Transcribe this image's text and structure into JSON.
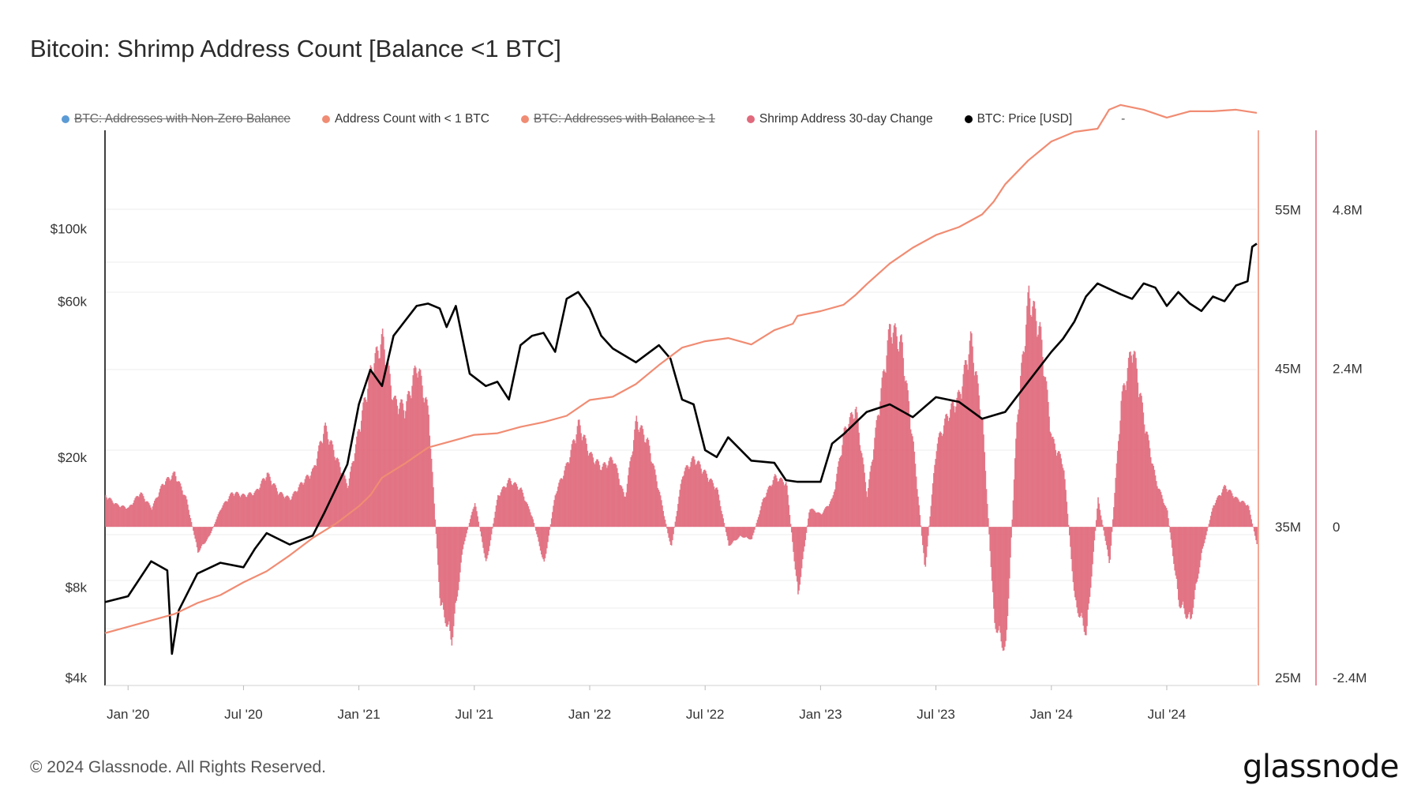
{
  "title": "Bitcoin: Shrimp Address Count [Balance <1 BTC]",
  "legend": [
    {
      "label": "BTC: Addresses with Non-Zero Balance",
      "color": "#5b9bd5",
      "hidden": true
    },
    {
      "label": "Address Count with < 1 BTC",
      "color": "#f08c73",
      "hidden": false
    },
    {
      "label": "BTC: Addresses with Balance ≥ 1",
      "color": "#f08c73",
      "hidden": true
    },
    {
      "label": "Shrimp Address 30-day Change",
      "color": "#e06a7c",
      "hidden": false
    },
    {
      "label": "BTC: Price [USD]",
      "color": "#000000",
      "hidden": false
    }
  ],
  "legend_extra": "-",
  "footer": "© 2024 Glassnode. All Rights Reserved.",
  "logo": "glassnode",
  "chart_data": {
    "type": "line",
    "x_ticks": [
      "Jan '20",
      "Jul '20",
      "Jan '21",
      "Jul '21",
      "Jan '22",
      "Jul '22",
      "Jan '23",
      "Jul '23",
      "Jan '24",
      "Jul '24"
    ],
    "y_left_ticks": [
      "$100k",
      "$60k",
      "$20k",
      "$8k",
      "$4k"
    ],
    "y_right1_ticks": [
      "55M",
      "45M",
      "35M",
      "25M"
    ],
    "y_right2_ticks": [
      "4.8M",
      "2.4M",
      "0",
      "-2.4M"
    ],
    "y_left_scale": "log",
    "y_left_range": [
      4000,
      200000
    ],
    "y_right1_range": [
      25000000,
      60000000
    ],
    "y_right2_range": [
      -2400000,
      6000000
    ],
    "x_range": [
      2019.9,
      2024.89
    ],
    "series": [
      {
        "name": "BTC: Price [USD]",
        "axis": "left",
        "color": "#000000",
        "x": [
          2019.9,
          2020.0,
          2020.1,
          2020.17,
          2020.19,
          2020.22,
          2020.3,
          2020.4,
          2020.5,
          2020.55,
          2020.6,
          2020.7,
          2020.8,
          2020.85,
          2020.9,
          2020.95,
          2021.0,
          2021.05,
          2021.1,
          2021.15,
          2021.25,
          2021.3,
          2021.35,
          2021.38,
          2021.42,
          2021.48,
          2021.55,
          2021.6,
          2021.65,
          2021.7,
          2021.75,
          2021.8,
          2021.85,
          2021.9,
          2021.95,
          2022.0,
          2022.05,
          2022.1,
          2022.2,
          2022.3,
          2022.35,
          2022.4,
          2022.45,
          2022.5,
          2022.55,
          2022.6,
          2022.7,
          2022.8,
          2022.85,
          2022.9,
          2023.0,
          2023.05,
          2023.1,
          2023.2,
          2023.3,
          2023.4,
          2023.5,
          2023.6,
          2023.7,
          2023.8,
          2023.9,
          2024.0,
          2024.05,
          2024.1,
          2024.15,
          2024.2,
          2024.3,
          2024.35,
          2024.4,
          2024.45,
          2024.5,
          2024.55,
          2024.6,
          2024.65,
          2024.7,
          2024.75,
          2024.8,
          2024.85,
          2024.87,
          2024.89
        ],
        "y": [
          7200,
          7500,
          9600,
          9000,
          5000,
          6800,
          8800,
          9500,
          9200,
          10500,
          11700,
          10800,
          11500,
          13500,
          16000,
          19000,
          29000,
          37000,
          33000,
          47000,
          58000,
          59000,
          57000,
          50000,
          58000,
          36000,
          33000,
          34000,
          30000,
          44000,
          47000,
          48000,
          42000,
          61000,
          64000,
          57000,
          47000,
          43000,
          39000,
          44000,
          40000,
          30000,
          29000,
          21000,
          20000,
          23000,
          19500,
          19200,
          17000,
          16800,
          16800,
          22000,
          23500,
          27500,
          29000,
          26500,
          30500,
          29500,
          26200,
          27500,
          34000,
          42000,
          46000,
          52000,
          62000,
          68000,
          63000,
          61000,
          68000,
          66000,
          58000,
          64000,
          59000,
          56000,
          62000,
          60000,
          67000,
          69000,
          88000,
          90000
        ]
      },
      {
        "name": "Address Count with < 1 BTC",
        "axis": "right1",
        "color": "#f08c73",
        "x": [
          2019.9,
          2020.0,
          2020.2,
          2020.3,
          2020.4,
          2020.5,
          2020.6,
          2020.7,
          2020.8,
          2020.9,
          2021.0,
          2021.05,
          2021.1,
          2021.2,
          2021.3,
          2021.4,
          2021.5,
          2021.6,
          2021.7,
          2021.8,
          2021.9,
          2022.0,
          2022.1,
          2022.2,
          2022.3,
          2022.4,
          2022.5,
          2022.6,
          2022.7,
          2022.8,
          2022.88,
          2022.9,
          2023.0,
          2023.1,
          2023.15,
          2023.2,
          2023.3,
          2023.4,
          2023.5,
          2023.6,
          2023.7,
          2023.75,
          2023.8,
          2023.9,
          2024.0,
          2024.1,
          2024.2,
          2024.25,
          2024.3,
          2024.4,
          2024.5,
          2024.6,
          2024.7,
          2024.8,
          2024.89
        ],
        "y": [
          28300000,
          28700000,
          29500000,
          30200000,
          30700000,
          31500000,
          32200000,
          33200000,
          34300000,
          35200000,
          36300000,
          37000000,
          38100000,
          39000000,
          40000000,
          40400000,
          40800000,
          40900000,
          41300000,
          41600000,
          42000000,
          43000000,
          43200000,
          44000000,
          45200000,
          46300000,
          46700000,
          46900000,
          46500000,
          47400000,
          47800000,
          48300000,
          48600000,
          49000000,
          49600000,
          50300000,
          51600000,
          52600000,
          53400000,
          53900000,
          54700000,
          55500000,
          56600000,
          58100000,
          59300000,
          59900000,
          60100000,
          61300000,
          61600000,
          61300000,
          60800000,
          61200000,
          61200000,
          61300000,
          61100000
        ]
      }
    ],
    "bars": {
      "name": "Shrimp Address 30-day Change",
      "axis": "right2",
      "color": "#e06a7c",
      "x": [
        2019.9,
        2019.95,
        2020.0,
        2020.05,
        2020.1,
        2020.15,
        2020.2,
        2020.25,
        2020.3,
        2020.35,
        2020.4,
        2020.45,
        2020.5,
        2020.55,
        2020.6,
        2020.65,
        2020.7,
        2020.75,
        2020.8,
        2020.85,
        2020.9,
        2020.95,
        2021.0,
        2021.05,
        2021.1,
        2021.15,
        2021.2,
        2021.25,
        2021.3,
        2021.35,
        2021.4,
        2021.45,
        2021.5,
        2021.55,
        2021.6,
        2021.65,
        2021.7,
        2021.75,
        2021.8,
        2021.85,
        2021.9,
        2021.95,
        2022.0,
        2022.05,
        2022.1,
        2022.15,
        2022.2,
        2022.25,
        2022.3,
        2022.35,
        2022.4,
        2022.45,
        2022.5,
        2022.55,
        2022.6,
        2022.65,
        2022.7,
        2022.75,
        2022.8,
        2022.85,
        2022.9,
        2022.95,
        2023.0,
        2023.05,
        2023.1,
        2023.15,
        2023.2,
        2023.25,
        2023.3,
        2023.35,
        2023.4,
        2023.45,
        2023.5,
        2023.55,
        2023.6,
        2023.65,
        2023.7,
        2023.75,
        2023.8,
        2023.85,
        2023.9,
        2023.95,
        2024.0,
        2024.05,
        2024.1,
        2024.15,
        2024.2,
        2024.25,
        2024.3,
        2024.35,
        2024.4,
        2024.45,
        2024.5,
        2024.55,
        2024.6,
        2024.65,
        2024.7,
        2024.75,
        2024.8,
        2024.85,
        2024.89
      ],
      "y": [
        500000,
        350000,
        300000,
        550000,
        300000,
        700000,
        850000,
        450000,
        -400000,
        -150000,
        300000,
        550000,
        500000,
        550000,
        850000,
        550000,
        450000,
        700000,
        900000,
        1600000,
        1100000,
        650000,
        1600000,
        2500000,
        3000000,
        2000000,
        1900000,
        2600000,
        1800000,
        -1200000,
        -1800000,
        -300000,
        400000,
        -600000,
        500000,
        750000,
        600000,
        150000,
        -600000,
        550000,
        1000000,
        1650000,
        1150000,
        950000,
        1100000,
        450000,
        1700000,
        1350000,
        550000,
        -350000,
        850000,
        1100000,
        850000,
        600000,
        -300000,
        -150000,
        -200000,
        450000,
        800000,
        700000,
        -1100000,
        300000,
        200000,
        450000,
        1500000,
        1900000,
        500000,
        1900000,
        3200000,
        2900000,
        1300000,
        -700000,
        1300000,
        1800000,
        2100000,
        3000000,
        1650000,
        -1500000,
        -2000000,
        1800000,
        3700000,
        3100000,
        1400000,
        1000000,
        -1200000,
        -1700000,
        450000,
        -600000,
        2000000,
        2900000,
        1700000,
        750000,
        250000,
        -1200000,
        -1500000,
        -400000,
        350000,
        650000,
        450000,
        350000,
        -300000
      ]
    }
  }
}
